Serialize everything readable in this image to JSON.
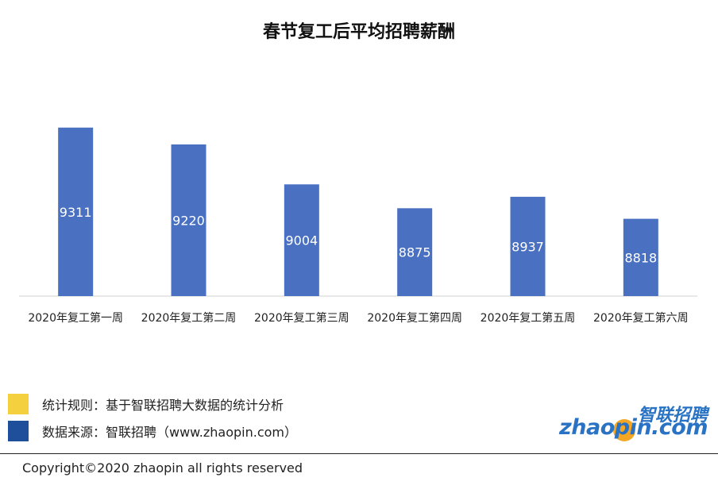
{
  "chart_data": {
    "type": "bar",
    "title": "春节复工后平均招聘薪酬",
    "categories": [
      "2020年复工第一周",
      "2020年复工第二周",
      "2020年复工第三周",
      "2020年复工第四周",
      "2020年复工第五周",
      "2020年复工第六周"
    ],
    "values": [
      9311,
      9220,
      9004,
      8875,
      8937,
      8818
    ],
    "bar_color": "#4a70c1",
    "data_label_color": "#ffffff",
    "grid": false,
    "ylim": [
      8400,
      9400
    ]
  },
  "legend": {
    "items": [
      {
        "text": "统计规则：基于智联招聘大数据的统计分析",
        "color": "#f4d03f"
      },
      {
        "text": "数据来源：智联招聘（www.zhaopin.com）",
        "color": "#1f4e9a"
      }
    ]
  },
  "logo": {
    "cn": "智联招聘",
    "en": "zhaopin.com"
  },
  "footer": {
    "copyright": "Copyright©2020 zhaopin all rights reserved"
  }
}
